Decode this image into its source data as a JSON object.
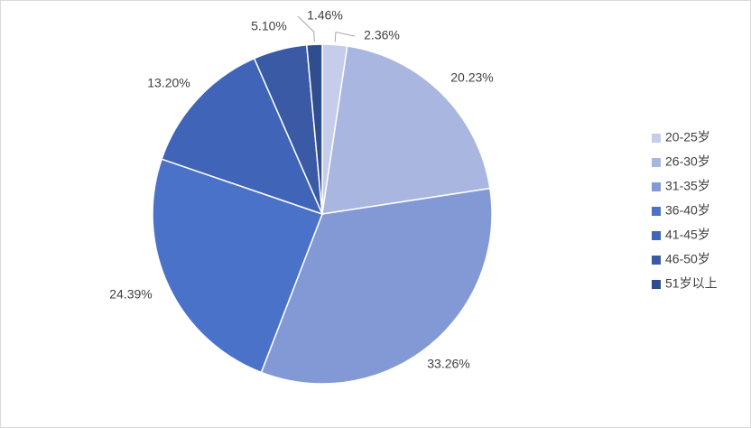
{
  "chart_data": {
    "type": "pie",
    "categories": [
      "20-25岁",
      "26-30岁",
      "31-35岁",
      "36-40岁",
      "41-45岁",
      "46-50岁",
      "51岁以上"
    ],
    "values": [
      2.36,
      20.23,
      33.26,
      24.39,
      13.2,
      5.1,
      1.46
    ],
    "value_labels": [
      "2.36%",
      "20.23%",
      "33.26%",
      "24.39%",
      "13.20%",
      "5.10%",
      "1.46%"
    ],
    "colors": [
      "#c6cdea",
      "#a9b6e0",
      "#8299d6",
      "#4a72c8",
      "#3f64b8",
      "#3a5aa6",
      "#2f4d8f"
    ],
    "legend": "right"
  }
}
